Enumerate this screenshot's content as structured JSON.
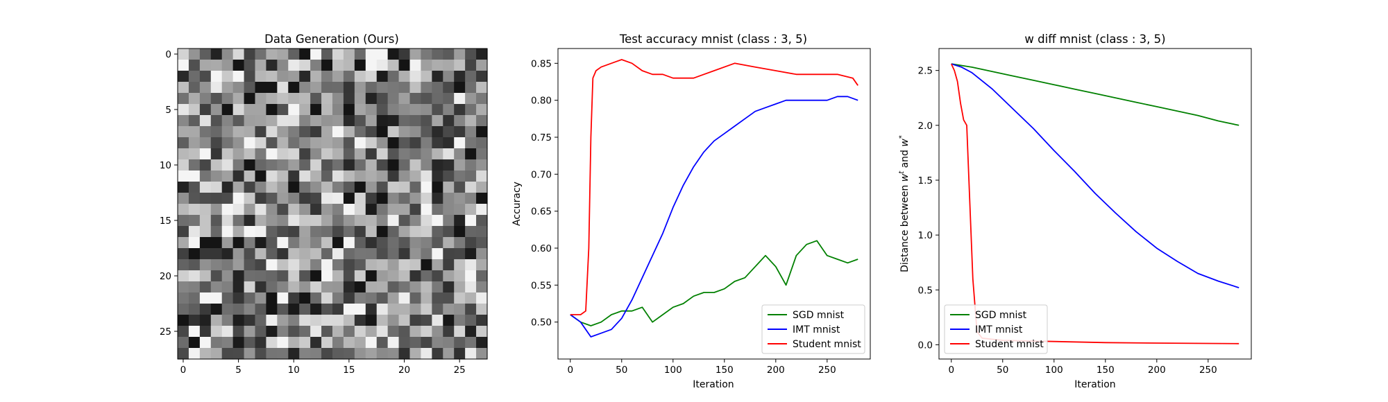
{
  "chart_data": [
    {
      "type": "heatmap",
      "title": "Data Generation (Ours)",
      "xlabel": "",
      "ylabel": "",
      "rows": 28,
      "cols": 28,
      "xlim": [
        -0.5,
        27.5
      ],
      "ylim": [
        27.5,
        -0.5
      ],
      "xticks": [
        0,
        5,
        10,
        15,
        20,
        25
      ],
      "yticks": [
        0,
        5,
        10,
        15,
        20,
        25
      ],
      "colormap": "gray"
    },
    {
      "type": "line",
      "title": "Test accuracy mnist (class : 3, 5)",
      "xlabel": "Iteration",
      "ylabel": "Accuracy",
      "xlim": [
        -12,
        292
      ],
      "ylim": [
        0.45,
        0.87
      ],
      "xticks": [
        0,
        50,
        100,
        150,
        200,
        250
      ],
      "yticks": [
        0.5,
        0.55,
        0.6,
        0.65,
        0.7,
        0.75,
        0.8,
        0.85
      ],
      "ytick_labels": [
        "0.50",
        "0.55",
        "0.60",
        "0.65",
        "0.70",
        "0.75",
        "0.80",
        "0.85"
      ],
      "grid": false,
      "legend": "lower-right",
      "series": [
        {
          "name": "SGD mnist",
          "color": "#008000",
          "x": [
            0,
            10,
            20,
            30,
            40,
            50,
            60,
            70,
            80,
            90,
            100,
            110,
            120,
            130,
            140,
            150,
            160,
            170,
            180,
            190,
            200,
            210,
            220,
            230,
            240,
            250,
            260,
            270,
            280
          ],
          "y": [
            0.51,
            0.5,
            0.495,
            0.5,
            0.51,
            0.515,
            0.515,
            0.52,
            0.5,
            0.51,
            0.52,
            0.525,
            0.535,
            0.54,
            0.54,
            0.545,
            0.555,
            0.56,
            0.575,
            0.59,
            0.575,
            0.55,
            0.59,
            0.605,
            0.61,
            0.59,
            0.585,
            0.58,
            0.585
          ]
        },
        {
          "name": "IMT mnist",
          "color": "#0000ff",
          "x": [
            0,
            10,
            20,
            30,
            40,
            50,
            60,
            70,
            80,
            90,
            100,
            110,
            120,
            130,
            140,
            150,
            160,
            170,
            180,
            190,
            200,
            210,
            220,
            230,
            240,
            250,
            260,
            270,
            280
          ],
          "y": [
            0.51,
            0.5,
            0.48,
            0.485,
            0.49,
            0.505,
            0.53,
            0.56,
            0.59,
            0.62,
            0.655,
            0.685,
            0.71,
            0.73,
            0.745,
            0.755,
            0.765,
            0.775,
            0.785,
            0.79,
            0.795,
            0.8,
            0.8,
            0.8,
            0.8,
            0.8,
            0.805,
            0.805,
            0.8
          ]
        },
        {
          "name": "Student mnist",
          "color": "#ff0000",
          "x": [
            0,
            10,
            15,
            18,
            20,
            22,
            25,
            30,
            40,
            50,
            60,
            70,
            80,
            90,
            100,
            120,
            140,
            160,
            180,
            200,
            220,
            240,
            260,
            275,
            280
          ],
          "y": [
            0.51,
            0.51,
            0.515,
            0.6,
            0.75,
            0.83,
            0.84,
            0.845,
            0.85,
            0.855,
            0.85,
            0.84,
            0.835,
            0.835,
            0.83,
            0.83,
            0.84,
            0.85,
            0.845,
            0.84,
            0.835,
            0.835,
            0.835,
            0.83,
            0.82
          ]
        }
      ]
    },
    {
      "type": "line",
      "title": "w diff mnist (class : 3, 5)",
      "xlabel": "Iteration",
      "ylabel_prefix": "Distance between ",
      "ylabel_w1": "w",
      "ylabel_sup1": "t",
      "ylabel_mid": " and ",
      "ylabel_w2": "w",
      "ylabel_sup2": "*",
      "xlim": [
        -12,
        292
      ],
      "ylim": [
        -0.13,
        2.7
      ],
      "xticks": [
        0,
        50,
        100,
        150,
        200,
        250
      ],
      "yticks": [
        0.0,
        0.5,
        1.0,
        1.5,
        2.0,
        2.5
      ],
      "ytick_labels": [
        "0.0",
        "0.5",
        "1.0",
        "1.5",
        "2.0",
        "2.5"
      ],
      "grid": false,
      "legend": "lower-left",
      "series": [
        {
          "name": "SGD mnist",
          "color": "#008000",
          "x": [
            0,
            20,
            40,
            60,
            80,
            100,
            120,
            140,
            160,
            180,
            200,
            220,
            240,
            260,
            280
          ],
          "y": [
            2.56,
            2.53,
            2.49,
            2.45,
            2.41,
            2.37,
            2.33,
            2.29,
            2.25,
            2.21,
            2.17,
            2.13,
            2.09,
            2.04,
            2.0
          ]
        },
        {
          "name": "IMT mnist",
          "color": "#0000ff",
          "x": [
            0,
            10,
            20,
            40,
            60,
            80,
            100,
            120,
            140,
            160,
            180,
            200,
            220,
            240,
            260,
            280
          ],
          "y": [
            2.56,
            2.53,
            2.48,
            2.33,
            2.15,
            1.97,
            1.77,
            1.58,
            1.38,
            1.2,
            1.03,
            0.88,
            0.76,
            0.65,
            0.58,
            0.52
          ]
        },
        {
          "name": "Student mnist",
          "color": "#ff0000",
          "x": [
            0,
            3,
            6,
            9,
            12,
            15,
            18,
            21,
            25,
            30,
            50,
            100,
            150,
            200,
            250,
            280
          ],
          "y": [
            2.56,
            2.5,
            2.4,
            2.2,
            2.05,
            2.0,
            1.3,
            0.6,
            0.12,
            0.06,
            0.04,
            0.03,
            0.02,
            0.015,
            0.012,
            0.01
          ]
        }
      ]
    }
  ]
}
